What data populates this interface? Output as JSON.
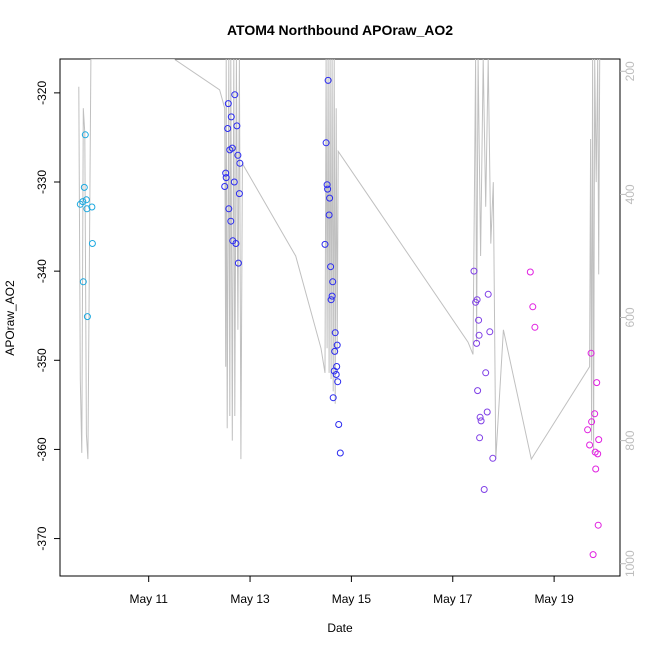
{
  "chart_data": {
    "type": "scatter",
    "title": "ATOM4 Northbound APOraw_AO2",
    "xlabel": "Date",
    "ylabel": "APOraw_AO2",
    "x_ticks": [
      "May 11",
      "May 13",
      "May 15",
      "May 17",
      "May 19"
    ],
    "x_tick_days": [
      11,
      13,
      15,
      17,
      19
    ],
    "xlim_days": [
      9.25,
      20.3
    ],
    "y_ticks": [
      -320,
      -330,
      -340,
      -350,
      -360,
      -370
    ],
    "ylim": [
      -374.2,
      -316.2
    ],
    "y2_ticks": [
      200,
      400,
      600,
      800,
      1000
    ],
    "y2lim": [
      1020,
      180
    ],
    "grid": false,
    "colors": {
      "cyan": "#1ca9e0",
      "blue": "#2b2bf0",
      "purple": "#7f3fe6",
      "magenta": "#e020e0",
      "line": "#c0c0c0"
    },
    "series": [
      {
        "color_key": "cyan",
        "points": [
          [
            9.65,
            -332.5
          ],
          [
            9.7,
            -332.2
          ],
          [
            9.71,
            -341.2
          ],
          [
            9.73,
            -330.6
          ],
          [
            9.75,
            -324.7
          ],
          [
            9.77,
            -332.0
          ],
          [
            9.78,
            -333.0
          ],
          [
            9.79,
            -345.1
          ],
          [
            9.88,
            -332.8
          ],
          [
            9.89,
            -336.9
          ]
        ]
      },
      {
        "color_key": "blue",
        "points": [
          [
            12.5,
            -330.5
          ],
          [
            12.52,
            -329.0
          ],
          [
            12.53,
            -329.5
          ],
          [
            12.56,
            -324.0
          ],
          [
            12.57,
            -321.2
          ],
          [
            12.58,
            -333.0
          ],
          [
            12.6,
            -326.4
          ],
          [
            12.62,
            -334.4
          ],
          [
            12.63,
            -322.7
          ],
          [
            12.65,
            -326.2
          ],
          [
            12.66,
            -336.6
          ],
          [
            12.69,
            -330.0
          ],
          [
            12.7,
            -320.2
          ],
          [
            12.72,
            -336.9
          ],
          [
            12.74,
            -323.7
          ],
          [
            12.76,
            -327.0
          ],
          [
            12.77,
            -339.1
          ],
          [
            12.79,
            -331.3
          ],
          [
            12.8,
            -327.9
          ],
          [
            14.48,
            -337.0
          ],
          [
            14.5,
            -325.6
          ],
          [
            14.52,
            -330.3
          ],
          [
            14.53,
            -330.8
          ],
          [
            14.54,
            -318.6
          ],
          [
            14.56,
            -333.7
          ],
          [
            14.57,
            -331.8
          ],
          [
            14.59,
            -339.5
          ],
          [
            14.6,
            -343.2
          ],
          [
            14.62,
            -342.8
          ],
          [
            14.63,
            -341.2
          ],
          [
            14.64,
            -354.2
          ],
          [
            14.66,
            -351.2
          ],
          [
            14.67,
            -349.0
          ],
          [
            14.68,
            -346.9
          ],
          [
            14.7,
            -351.6
          ],
          [
            14.71,
            -350.7
          ],
          [
            14.72,
            -348.3
          ],
          [
            14.73,
            -352.4
          ],
          [
            14.75,
            -357.2
          ],
          [
            14.78,
            -360.4
          ]
        ]
      },
      {
        "color_key": "purple",
        "points": [
          [
            17.42,
            -340.0
          ],
          [
            17.45,
            -343.5
          ],
          [
            17.47,
            -348.1
          ],
          [
            17.48,
            -343.2
          ],
          [
            17.49,
            -353.4
          ],
          [
            17.51,
            -345.5
          ],
          [
            17.52,
            -347.2
          ],
          [
            17.53,
            -358.7
          ],
          [
            17.54,
            -356.4
          ],
          [
            17.56,
            -356.8
          ],
          [
            17.62,
            -364.5
          ],
          [
            17.65,
            -351.4
          ],
          [
            17.68,
            -355.8
          ],
          [
            17.7,
            -342.6
          ],
          [
            17.73,
            -346.8
          ],
          [
            17.79,
            -361.0
          ]
        ]
      },
      {
        "color_key": "magenta",
        "points": [
          [
            18.53,
            -340.1
          ],
          [
            18.58,
            -344.0
          ],
          [
            18.62,
            -346.3
          ],
          [
            19.66,
            -357.8
          ],
          [
            19.7,
            -359.5
          ],
          [
            19.73,
            -349.2
          ],
          [
            19.74,
            -356.9
          ],
          [
            19.77,
            -371.8
          ],
          [
            19.8,
            -356.0
          ],
          [
            19.81,
            -360.3
          ],
          [
            19.82,
            -362.2
          ],
          [
            19.84,
            -352.5
          ],
          [
            19.86,
            -360.5
          ],
          [
            19.87,
            -368.5
          ],
          [
            19.88,
            -358.9
          ]
        ]
      }
    ],
    "line_series": {
      "axis": "y2",
      "points": [
        [
          9.62,
          225
        ],
        [
          9.65,
          700
        ],
        [
          9.68,
          820
        ],
        [
          9.71,
          260
        ],
        [
          9.74,
          300
        ],
        [
          9.77,
          790
        ],
        [
          9.8,
          830
        ],
        [
          9.86,
          180
        ],
        [
          10.4,
          180
        ],
        [
          11.5,
          180
        ],
        [
          12.4,
          230
        ],
        [
          12.5,
          260
        ],
        [
          12.52,
          680
        ],
        [
          12.53,
          180
        ],
        [
          12.55,
          780
        ],
        [
          12.58,
          180
        ],
        [
          12.6,
          760
        ],
        [
          12.62,
          180
        ],
        [
          12.65,
          800
        ],
        [
          12.68,
          180
        ],
        [
          12.7,
          760
        ],
        [
          12.73,
          180
        ],
        [
          12.76,
          620
        ],
        [
          12.79,
          180
        ],
        [
          12.82,
          830
        ],
        [
          12.85,
          350
        ],
        [
          13.9,
          500
        ],
        [
          14.4,
          650
        ],
        [
          14.48,
          690
        ],
        [
          14.5,
          180
        ],
        [
          14.52,
          650
        ],
        [
          14.54,
          180
        ],
        [
          14.56,
          690
        ],
        [
          14.58,
          180
        ],
        [
          14.6,
          700
        ],
        [
          14.62,
          180
        ],
        [
          14.64,
          720
        ],
        [
          14.66,
          180
        ],
        [
          14.68,
          740
        ],
        [
          14.7,
          260
        ],
        [
          14.72,
          660
        ],
        [
          14.74,
          330
        ],
        [
          17.3,
          640
        ],
        [
          17.4,
          660
        ],
        [
          17.45,
          180
        ],
        [
          17.47,
          640
        ],
        [
          17.5,
          180
        ],
        [
          17.55,
          500
        ],
        [
          17.6,
          180
        ],
        [
          17.65,
          420
        ],
        [
          17.7,
          180
        ],
        [
          17.75,
          480
        ],
        [
          17.8,
          380
        ],
        [
          17.85,
          830
        ],
        [
          18.0,
          620
        ],
        [
          18.55,
          830
        ],
        [
          19.7,
          680
        ],
        [
          19.72,
          310
        ],
        [
          19.74,
          800
        ],
        [
          19.76,
          180
        ],
        [
          19.78,
          820
        ],
        [
          19.8,
          180
        ],
        [
          19.83,
          380
        ],
        [
          19.86,
          180
        ],
        [
          19.88,
          530
        ],
        [
          19.9,
          180
        ]
      ]
    }
  }
}
